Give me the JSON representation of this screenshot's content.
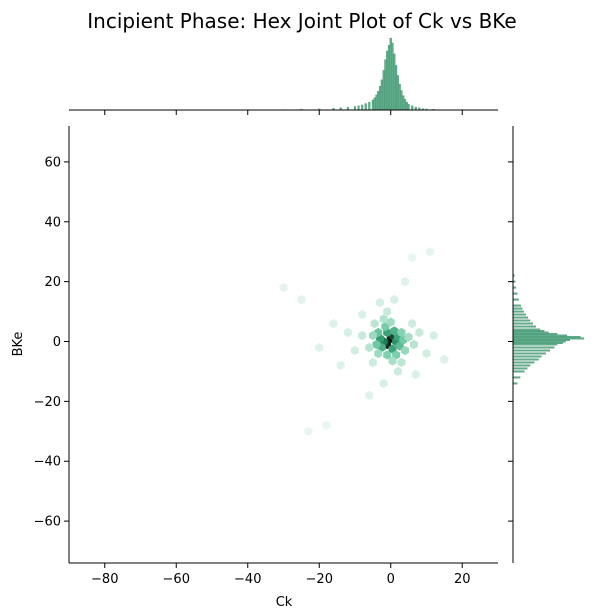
{
  "chart_data": {
    "type": "hexbin-joint",
    "title": "Incipient Phase: Hex Joint Plot of Ck vs BKe",
    "xlabel": "Ck",
    "ylabel": "BKe",
    "xlim": [
      -90,
      30
    ],
    "ylim": [
      -74,
      72
    ],
    "x_ticks": [
      -80,
      -60,
      -40,
      -20,
      0,
      20
    ],
    "y_ticks": [
      -60,
      -40,
      -20,
      0,
      20,
      40,
      60
    ],
    "x_tick_labels": [
      "−80",
      "−60",
      "−40",
      "−20",
      "0",
      "20"
    ],
    "y_tick_labels": [
      "−60",
      "−40",
      "−20",
      "0",
      "20",
      "40",
      "60"
    ],
    "colors": {
      "hex_low": "#f4faf7",
      "hex_mid": "#7cd0ad",
      "hex_high": "#1f8a5e",
      "hex_peak": "#0d1410",
      "hist_fill": "#5fae8b",
      "hist_edge": "#3f8a68"
    },
    "hexbins": [
      {
        "x": 0,
        "y": 1,
        "density": 1.0
      },
      {
        "x": -1,
        "y": -1,
        "density": 0.97
      },
      {
        "x": -1.5,
        "y": -0.5,
        "density": 0.92
      },
      {
        "x": 0.5,
        "y": 2,
        "density": 0.85
      },
      {
        "x": -2,
        "y": 0,
        "density": 0.7
      },
      {
        "x": 1.5,
        "y": 0,
        "density": 0.62
      },
      {
        "x": -3,
        "y": 1,
        "density": 0.55
      },
      {
        "x": 2,
        "y": 1.5,
        "density": 0.5
      },
      {
        "x": -1,
        "y": 3,
        "density": 0.5
      },
      {
        "x": 0.5,
        "y": -2.5,
        "density": 0.5
      },
      {
        "x": -2.5,
        "y": -2,
        "density": 0.42
      },
      {
        "x": 1,
        "y": 3.5,
        "density": 0.4
      },
      {
        "x": 2.5,
        "y": -1.5,
        "density": 0.35
      },
      {
        "x": -3.5,
        "y": 3,
        "density": 0.3
      },
      {
        "x": -4,
        "y": -1,
        "density": 0.28
      },
      {
        "x": 3.5,
        "y": 0.5,
        "density": 0.27
      },
      {
        "x": -1.5,
        "y": 5,
        "density": 0.25
      },
      {
        "x": 1.5,
        "y": -4.5,
        "density": 0.24
      },
      {
        "x": -1,
        "y": -4.5,
        "density": 0.22
      },
      {
        "x": 3,
        "y": 3,
        "density": 0.2
      },
      {
        "x": 4,
        "y": -3,
        "density": 0.15
      },
      {
        "x": -5,
        "y": 2,
        "density": 0.14
      },
      {
        "x": -3.5,
        "y": -4,
        "density": 0.13
      },
      {
        "x": 0,
        "y": 6.5,
        "density": 0.12
      },
      {
        "x": 5,
        "y": 1.5,
        "density": 0.11
      },
      {
        "x": 0.5,
        "y": -6.5,
        "density": 0.1
      },
      {
        "x": -2,
        "y": 7.5,
        "density": 0.08
      },
      {
        "x": -6,
        "y": -2,
        "density": 0.07
      },
      {
        "x": 6.5,
        "y": -1,
        "density": 0.07
      },
      {
        "x": 3,
        "y": -7,
        "density": 0.06
      },
      {
        "x": -4.5,
        "y": 6,
        "density": 0.06
      },
      {
        "x": -8,
        "y": 2,
        "density": 0.04
      },
      {
        "x": 8,
        "y": 3,
        "density": 0.04
      },
      {
        "x": -1,
        "y": 10,
        "density": 0.04
      },
      {
        "x": 2,
        "y": -10,
        "density": 0.035
      },
      {
        "x": -5,
        "y": -7,
        "density": 0.03
      },
      {
        "x": 6,
        "y": 6,
        "density": 0.03
      },
      {
        "x": -10,
        "y": -3,
        "density": 0.025
      },
      {
        "x": 10,
        "y": -4,
        "density": 0.025
      },
      {
        "x": -3,
        "y": 13,
        "density": 0.02
      },
      {
        "x": 1,
        "y": 14,
        "density": 0.02
      },
      {
        "x": -12,
        "y": 3,
        "density": 0.02
      },
      {
        "x": 12,
        "y": 2,
        "density": 0.02
      },
      {
        "x": -2,
        "y": -14,
        "density": 0.018
      },
      {
        "x": -8,
        "y": 9,
        "density": 0.015
      },
      {
        "x": 7,
        "y": -11,
        "density": 0.015
      },
      {
        "x": -14,
        "y": -8,
        "density": 0.012
      },
      {
        "x": -16,
        "y": 6,
        "density": 0.012
      },
      {
        "x": 15,
        "y": -6,
        "density": 0.012
      },
      {
        "x": -6,
        "y": -18,
        "density": 0.01
      },
      {
        "x": 4,
        "y": 20,
        "density": 0.01
      },
      {
        "x": -20,
        "y": -2,
        "density": 0.01
      },
      {
        "x": -25,
        "y": 14,
        "density": 0.008
      },
      {
        "x": -30,
        "y": 18,
        "density": 0.006
      },
      {
        "x": 11,
        "y": 30,
        "density": 0.005
      },
      {
        "x": -18,
        "y": -28,
        "density": 0.004
      },
      {
        "x": 6,
        "y": 28,
        "density": 0.004
      },
      {
        "x": -23,
        "y": -30,
        "density": 0.003
      }
    ],
    "x_marginal": {
      "bin_centers": [
        -40,
        -30,
        -25,
        -20,
        -16,
        -14,
        -12,
        -10,
        -9,
        -8,
        -7,
        -6,
        -5,
        -4.5,
        -4,
        -3.5,
        -3,
        -2.5,
        -2,
        -1.5,
        -1,
        -0.5,
        0,
        0.5,
        1,
        1.5,
        2,
        2.5,
        3,
        3.5,
        4,
        4.5,
        5,
        6,
        7,
        8,
        9,
        10,
        12,
        14
      ],
      "counts": [
        0.3,
        0.6,
        1.0,
        1.6,
        2.4,
        3,
        4,
        5,
        6,
        7,
        9,
        11,
        14,
        17,
        21,
        26,
        33,
        42,
        55,
        70,
        82,
        90,
        100,
        93,
        78,
        62,
        48,
        36,
        27,
        20,
        15,
        11,
        8,
        6,
        4,
        3,
        2,
        1.5,
        1,
        0.5
      ]
    },
    "y_marginal": {
      "bin_centers": [
        -14,
        -12,
        -10,
        -9,
        -8,
        -7,
        -6,
        -5,
        -4,
        -3,
        -2,
        -1,
        -0.5,
        0,
        0.5,
        1,
        1.5,
        2,
        2.5,
        3,
        3.5,
        4,
        5,
        6,
        7,
        8,
        9,
        10,
        11,
        12,
        14,
        16,
        18,
        20,
        22
      ],
      "counts": [
        6,
        10,
        16,
        20,
        24,
        30,
        36,
        40,
        46,
        52,
        58,
        62,
        70,
        74,
        80,
        100,
        95,
        76,
        62,
        50,
        44,
        38,
        32,
        28,
        24,
        21,
        18,
        15,
        13,
        11,
        8,
        6,
        4,
        3,
        2
      ]
    }
  }
}
